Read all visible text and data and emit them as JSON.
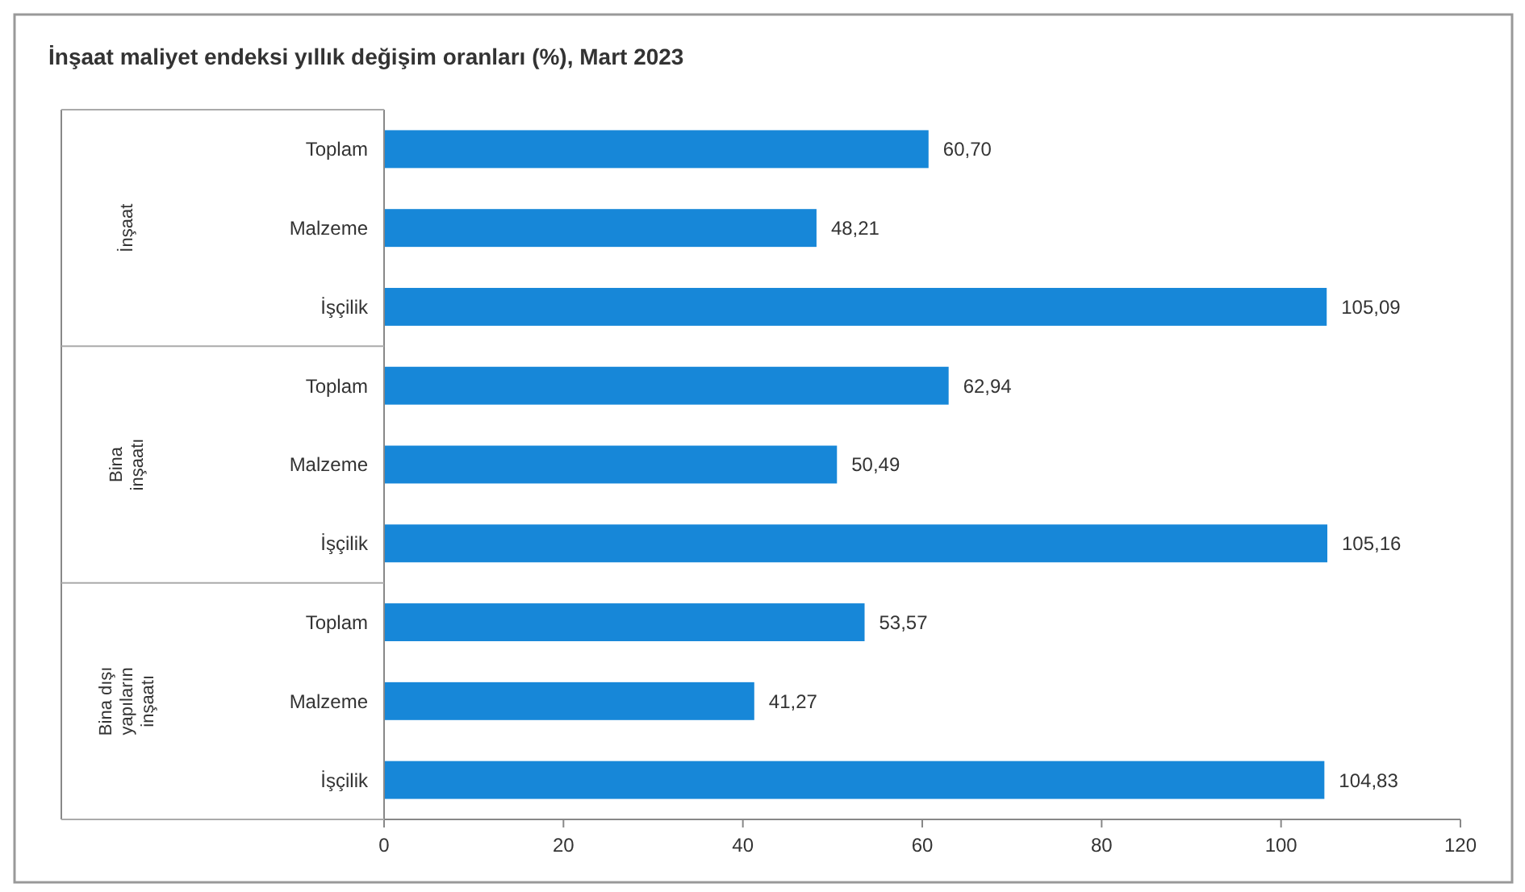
{
  "chart_data": {
    "type": "bar",
    "orientation": "horizontal",
    "title": "İnşaat maliyet endeksi yıllık değişim oranları (%), Mart 2023",
    "categories": [
      "Toplam",
      "Malzeme",
      "İşçilik",
      "Toplam",
      "Malzeme",
      "İşçilik",
      "Toplam",
      "Malzeme",
      "İşçilik"
    ],
    "values": [
      60.7,
      48.21,
      105.09,
      62.94,
      50.49,
      105.16,
      53.57,
      41.27,
      104.83
    ],
    "value_labels": [
      "60,70",
      "48,21",
      "105,09",
      "62,94",
      "50,49",
      "105,16",
      "53,57",
      "41,27",
      "104,83"
    ],
    "color": "#1787d8",
    "xlim": [
      0,
      120
    ],
    "xticks": [
      0,
      20,
      40,
      60,
      80,
      100,
      120
    ],
    "annotations": [
      "İnşaat",
      "Bina inşaatı",
      "Bina dışı yapıların inşaatı"
    ],
    "grid": false
  }
}
